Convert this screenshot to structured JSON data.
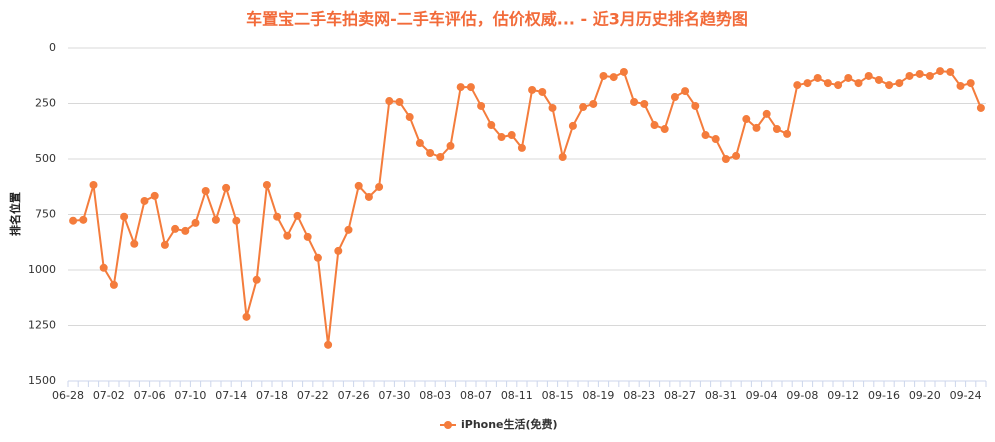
{
  "chart_data": {
    "type": "line",
    "title": "车置宝二手车拍卖网-二手车评估，估价权威... - 近3月历史排名趋势图",
    "y_label": "排名位置",
    "categories": [
      "06-28",
      null,
      null,
      null,
      "07-02",
      null,
      null,
      null,
      "07-06",
      null,
      null,
      null,
      "07-10",
      null,
      null,
      null,
      "07-14",
      null,
      null,
      null,
      "07-18",
      null,
      null,
      null,
      "07-22",
      null,
      null,
      null,
      "07-26",
      null,
      null,
      null,
      "07-30",
      null,
      null,
      null,
      "08-03",
      null,
      null,
      null,
      "08-07",
      null,
      null,
      null,
      "08-11",
      null,
      null,
      null,
      "08-15",
      null,
      null,
      null,
      "08-19",
      null,
      null,
      null,
      "08-23",
      null,
      null,
      null,
      "08-27",
      null,
      null,
      null,
      "08-31",
      null,
      null,
      null,
      "09-04",
      null,
      null,
      null,
      "09-08",
      null,
      null,
      null,
      "09-12",
      null,
      null,
      null,
      "09-16",
      null,
      null,
      null,
      "09-20",
      null,
      null,
      null,
      "09-24",
      null
    ],
    "series": [
      {
        "name": "iPhone生活(免费)",
        "color": "#f47c3c",
        "values": [
          778,
          774,
          617,
          990,
          1067,
          760,
          882,
          689,
          666,
          887,
          815,
          824,
          788,
          644,
          774,
          630,
          778,
          1211,
          1044,
          617,
          760,
          846,
          756,
          851,
          945,
          1337,
          914,
          819,
          621,
          671,
          626,
          239,
          243,
          311,
          428,
          473,
          491,
          441,
          176,
          176,
          261,
          347,
          401,
          392,
          450,
          189,
          198,
          270,
          491,
          351,
          266,
          252,
          126,
          131,
          108,
          243,
          252,
          347,
          365,
          221,
          194,
          261,
          392,
          410,
          500,
          486,
          320,
          360,
          297,
          365,
          387,
          167,
          158,
          135,
          158,
          167,
          135,
          158,
          126,
          144,
          167,
          158,
          126,
          117,
          126,
          104,
          108,
          171,
          158,
          270
        ]
      }
    ],
    "ylim": [
      0,
      1500
    ],
    "yticks": [
      0,
      250,
      500,
      750,
      1000,
      1250,
      1500
    ],
    "y_reversed": true,
    "grid": true,
    "legend_position": "bottom",
    "title_color": "#f26b3a"
  }
}
